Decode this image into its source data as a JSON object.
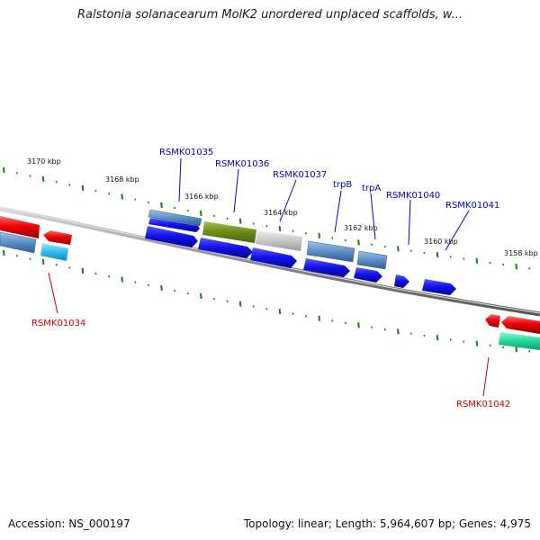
{
  "title": "Ralstonia solanacearum MolK2 unordered unplaced scaffolds, w...",
  "footer": {
    "accession": "Accession: NS_000197",
    "summary": "Topology: linear; Length: 5,964,607 bp; Genes: 4,975"
  },
  "colors": {
    "label_forward": "#0000cc",
    "label_reverse": "#cc0000",
    "tick": "#1f7a1f",
    "axis_line": "#888888"
  },
  "scale_labels": [
    "3170 kbp",
    "3168 kbp",
    "3166 kbp",
    "3164 kbp",
    "3162 kbp",
    "3160 kbp",
    "3158 kbp"
  ],
  "upper_gene_labels": [
    "RSMK01035",
    "RSMK01036",
    "RSMK01037",
    "trpB",
    "trpA",
    "RSMK01040",
    "RSMK01041"
  ],
  "lower_gene_labels": [
    "RSMK01034",
    "RSMK01042"
  ]
}
